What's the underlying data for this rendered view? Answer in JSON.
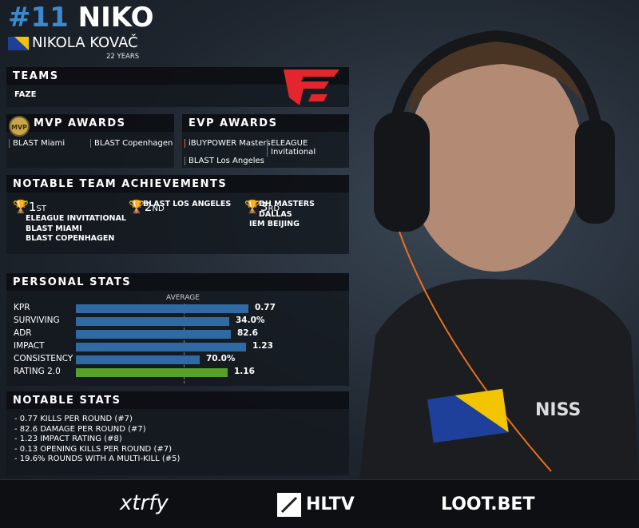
{
  "header": {
    "number": "#11",
    "nickname": "NIKO",
    "full_name": "NIKOLA KOVAČ",
    "age": "22 YEARS"
  },
  "teams": {
    "title": "TEAMS",
    "items": [
      "FAZE"
    ]
  },
  "mvp_awards": {
    "title": "MVP AWARDS",
    "badge": "MVP",
    "items": [
      "BLAST Miami",
      "BLAST Copenhagen"
    ]
  },
  "evp_awards": {
    "title": "EVP AWARDS",
    "items": [
      "iBUYPOWER Masters",
      "ELEAGUE Invitational",
      "BLAST Los Angeles"
    ]
  },
  "achievements": {
    "title": "NOTABLE TEAM ACHIEVEMENTS",
    "places": [
      {
        "number": "1",
        "suffix": "ST",
        "events": [
          "ELEAGUE INVITATIONAL",
          "BLAST MIAMI",
          "BLAST COPENHAGEN"
        ]
      },
      {
        "number": "2",
        "suffix": "ND",
        "events": [
          "BLAST LOS ANGELES"
        ]
      },
      {
        "number": "3",
        "suffix": "RD",
        "events": [
          "DH MASTERS DALLAS",
          "IEM BEIJING"
        ]
      }
    ]
  },
  "personal_stats": {
    "title": "PERSONAL STATS",
    "average_label": "AVERAGE",
    "rows": [
      {
        "label": "KPR",
        "value": "0.77"
      },
      {
        "label": "SURVIVING",
        "value": "34.0%"
      },
      {
        "label": "ADR",
        "value": "82.6"
      },
      {
        "label": "IMPACT",
        "value": "1.23"
      },
      {
        "label": "CONSISTENCY",
        "value": "70.0%"
      },
      {
        "label": "RATING 2.0",
        "value": "1.16"
      }
    ]
  },
  "notable_stats": {
    "title": "NOTABLE STATS",
    "items": [
      "- 0.77 KILLS PER ROUND (#7)",
      "- 82.6 DAMAGE PER ROUND (#7)",
      "- 1.23 IMPACT RATING (#8)",
      "- 0.13 OPENING KILLS PER ROUND (#7)",
      "- 19.6% ROUNDS WITH A MULTI-KILL (#5)"
    ]
  },
  "sponsors": [
    "xtrfy",
    "HLTV",
    "LOOT.BET"
  ]
}
